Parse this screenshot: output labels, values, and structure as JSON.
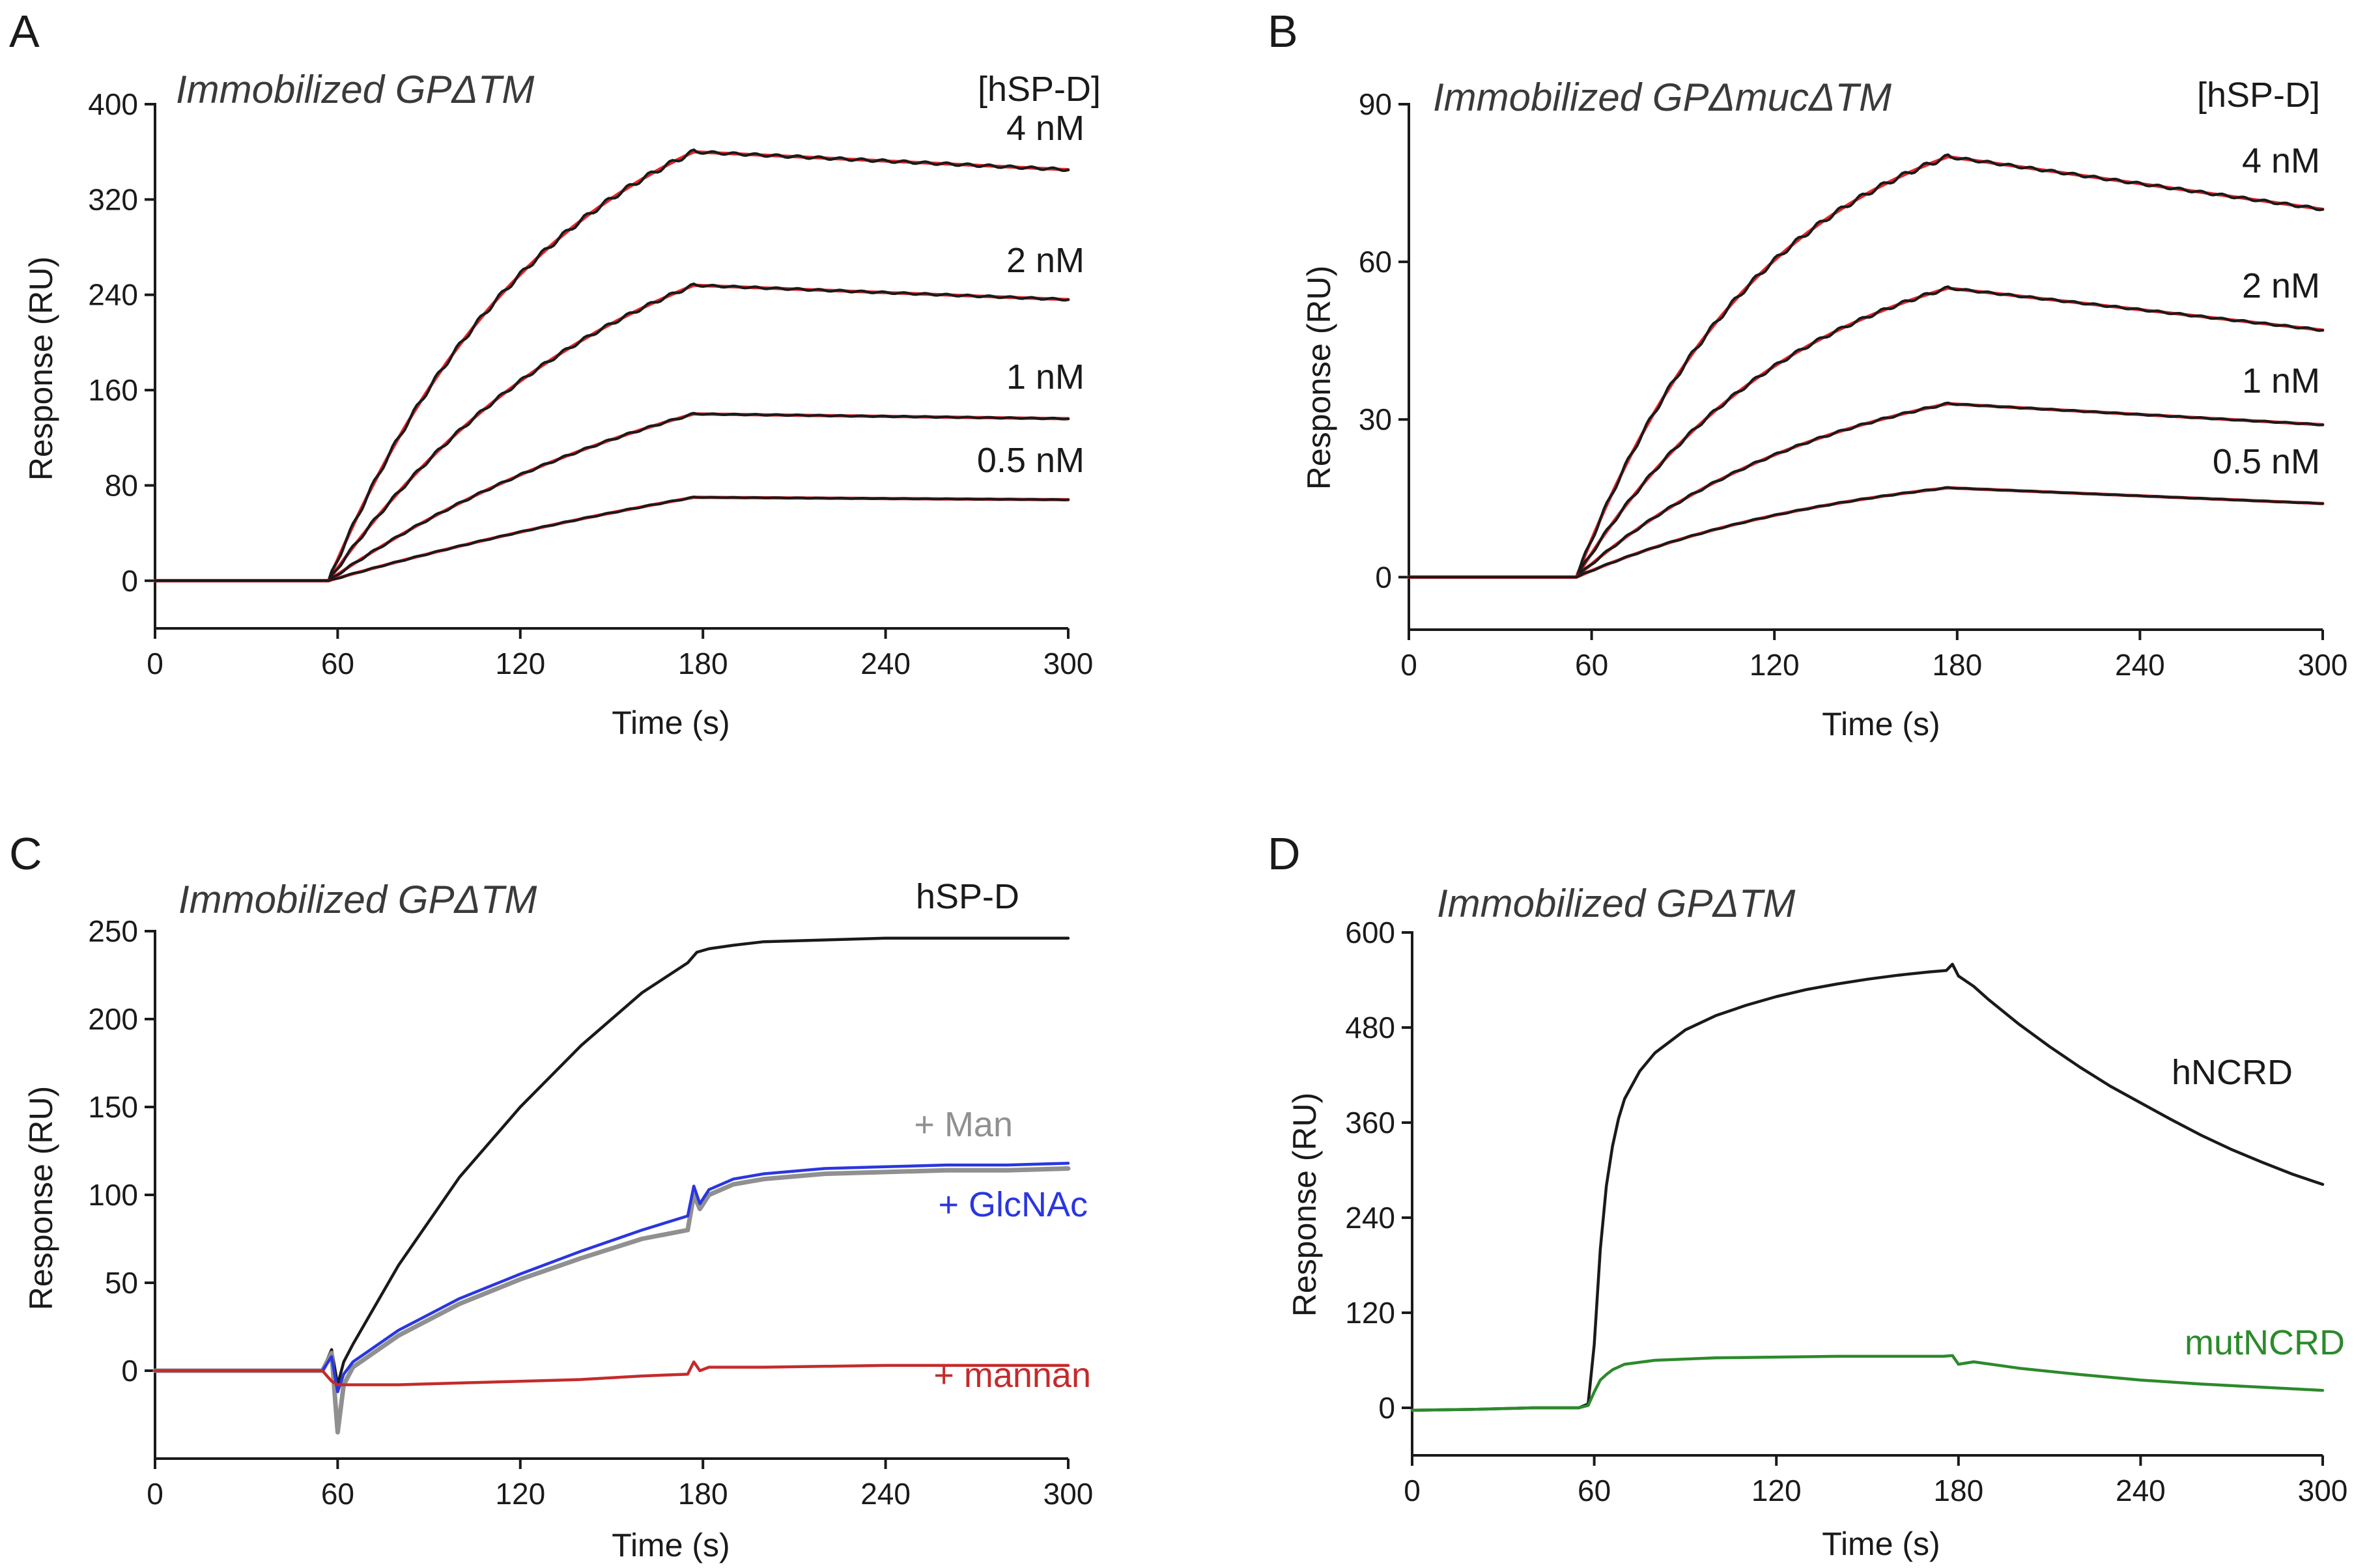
{
  "chart_data": [
    {
      "panel": "A",
      "type": "line",
      "title": "Immobilized GPΔTM",
      "legend_header": "[hSP-D]",
      "xlabel": "Time (s)",
      "ylabel": "Response (RU)",
      "xlim": [
        0,
        300
      ],
      "ylim": [
        -40,
        400
      ],
      "xticks": [
        0,
        60,
        120,
        180,
        240,
        300
      ],
      "yticks": [
        0,
        80,
        160,
        240,
        320,
        400
      ],
      "series": [
        {
          "name": "4 nM",
          "kind": "sensorgram",
          "Rmax": 360,
          "Rend": 345,
          "k": 0.0135,
          "start": 57,
          "end": 177,
          "color": "#1a1a1a",
          "fit_color": "#e8262b",
          "label_color": "#1a1a1a"
        },
        {
          "name": "2 nM",
          "kind": "sensorgram",
          "Rmax": 248,
          "Rend": 236,
          "k": 0.0105,
          "start": 57,
          "end": 177,
          "color": "#1a1a1a",
          "fit_color": "#e8262b",
          "label_color": "#1a1a1a"
        },
        {
          "name": "1 nM",
          "kind": "sensorgram",
          "Rmax": 140,
          "Rend": 136,
          "k": 0.0075,
          "start": 57,
          "end": 177,
          "color": "#1a1a1a",
          "fit_color": "#e8262b",
          "label_color": "#1a1a1a"
        },
        {
          "name": "0.5 nM",
          "kind": "sensorgram",
          "Rmax": 70,
          "Rend": 68,
          "k": 0.004,
          "start": 57,
          "end": 177,
          "color": "#1a1a1a",
          "fit_color": "#e8262b",
          "label_color": "#1a1a1a"
        }
      ]
    },
    {
      "panel": "B",
      "type": "line",
      "title": "Immobilized GPΔmucΔTM",
      "legend_header": "[hSP-D]",
      "xlabel": "Time (s)",
      "ylabel": "Response (RU)",
      "xlim": [
        0,
        300
      ],
      "ylim": [
        -10,
        90
      ],
      "xticks": [
        0,
        60,
        120,
        180,
        240,
        300
      ],
      "yticks": [
        0,
        30,
        60,
        90
      ],
      "series": [
        {
          "name": "4 nM",
          "kind": "sensorgram",
          "Rmax": 80,
          "Rend": 70,
          "k": 0.016,
          "start": 55,
          "end": 177,
          "color": "#1a1a1a",
          "fit_color": "#e8262b",
          "label_color": "#1a1a1a"
        },
        {
          "name": "2 nM",
          "kind": "sensorgram",
          "Rmax": 55,
          "Rend": 47,
          "k": 0.014,
          "start": 55,
          "end": 177,
          "color": "#1a1a1a",
          "fit_color": "#e8262b",
          "label_color": "#1a1a1a"
        },
        {
          "name": "1 nM",
          "kind": "sensorgram",
          "Rmax": 33,
          "Rend": 29,
          "k": 0.012,
          "start": 55,
          "end": 177,
          "color": "#1a1a1a",
          "fit_color": "#e8262b",
          "label_color": "#1a1a1a"
        },
        {
          "name": "0.5 nM",
          "kind": "sensorgram",
          "Rmax": 17,
          "Rend": 14,
          "k": 0.011,
          "start": 55,
          "end": 177,
          "color": "#1a1a1a",
          "fit_color": "#e8262b",
          "label_color": "#1a1a1a"
        }
      ]
    },
    {
      "panel": "C",
      "type": "line",
      "title": "Immobilized GPΔTM",
      "xlabel": "Time (s)",
      "ylabel": "Response (RU)",
      "xlim": [
        0,
        300
      ],
      "ylim": [
        -50,
        250
      ],
      "xticks": [
        0,
        60,
        120,
        180,
        240,
        300
      ],
      "yticks": [
        0,
        50,
        100,
        150,
        200,
        250
      ],
      "series": [
        {
          "name": "hSP-D",
          "color": "#1a1a1a",
          "label_color": "#1a1a1a",
          "x": [
            0,
            55,
            58,
            60,
            62,
            65,
            80,
            100,
            120,
            140,
            160,
            175,
            178,
            182,
            190,
            200,
            220,
            240,
            260,
            280,
            300
          ],
          "y": [
            0,
            0,
            12,
            -8,
            5,
            15,
            60,
            110,
            150,
            185,
            215,
            232,
            238,
            240,
            242,
            244,
            245,
            246,
            246,
            246,
            246
          ]
        },
        {
          "name": "+ Man",
          "color": "#909090",
          "label_color": "#909090",
          "x": [
            0,
            55,
            58,
            60,
            62,
            65,
            80,
            100,
            120,
            140,
            160,
            175,
            177,
            179,
            182,
            190,
            200,
            220,
            240,
            260,
            280,
            300
          ],
          "y": [
            0,
            0,
            10,
            -35,
            -8,
            2,
            20,
            38,
            52,
            64,
            75,
            80,
            100,
            92,
            100,
            106,
            109,
            112,
            113,
            114,
            114,
            115
          ]
        },
        {
          "name": "+ GlcNAc",
          "color": "#2a36e0",
          "label_color": "#2a36e0",
          "x": [
            0,
            55,
            58,
            60,
            62,
            65,
            80,
            100,
            120,
            140,
            160,
            175,
            177,
            179,
            182,
            190,
            200,
            220,
            240,
            260,
            280,
            300
          ],
          "y": [
            0,
            0,
            8,
            -12,
            -2,
            5,
            23,
            41,
            55,
            68,
            80,
            88,
            105,
            95,
            103,
            109,
            112,
            115,
            116,
            117,
            117,
            118
          ]
        },
        {
          "name": "+ mannan",
          "color": "#c42b2b",
          "label_color": "#c42b2b",
          "x": [
            0,
            55,
            58,
            60,
            63,
            80,
            100,
            120,
            140,
            160,
            175,
            177,
            179,
            182,
            200,
            240,
            280,
            300
          ],
          "y": [
            0,
            0,
            -6,
            -8,
            -8,
            -8,
            -7,
            -6,
            -5,
            -3,
            -2,
            5,
            0,
            2,
            2,
            3,
            3,
            3
          ]
        }
      ]
    },
    {
      "panel": "D",
      "type": "line",
      "title": "Immobilized GPΔTM",
      "xlabel": "Time (s)",
      "ylabel": "Response (RU)",
      "xlim": [
        0,
        300
      ],
      "ylim": [
        -60,
        600
      ],
      "xticks": [
        0,
        60,
        120,
        180,
        240,
        300
      ],
      "yticks": [
        0,
        120,
        240,
        360,
        480,
        600
      ],
      "series": [
        {
          "name": "hNCRD",
          "color": "#1a1a1a",
          "label_color": "#1a1a1a",
          "x": [
            0,
            20,
            40,
            55,
            58,
            60,
            62,
            64,
            66,
            68,
            70,
            75,
            80,
            90,
            100,
            110,
            120,
            130,
            140,
            150,
            160,
            170,
            176,
            178,
            180,
            185,
            190,
            200,
            210,
            220,
            230,
            240,
            250,
            260,
            270,
            280,
            290,
            300
          ],
          "y": [
            -3,
            -2,
            0,
            0,
            5,
            80,
            200,
            280,
            330,
            365,
            390,
            425,
            448,
            477,
            495,
            508,
            519,
            528,
            535,
            541,
            546,
            550,
            552,
            560,
            545,
            532,
            515,
            484,
            456,
            430,
            406,
            385,
            364,
            344,
            326,
            310,
            295,
            282
          ]
        },
        {
          "name": "mutNCRD",
          "color": "#2b8a2b",
          "label_color": "#2b8a2b",
          "x": [
            0,
            20,
            40,
            55,
            58,
            60,
            62,
            64,
            66,
            70,
            80,
            100,
            120,
            140,
            160,
            175,
            178,
            180,
            185,
            200,
            220,
            240,
            260,
            280,
            300
          ],
          "y": [
            -3,
            -2,
            0,
            0,
            3,
            20,
            35,
            42,
            48,
            55,
            60,
            63,
            64,
            65,
            65,
            65,
            66,
            55,
            58,
            50,
            42,
            35,
            30,
            26,
            22
          ]
        }
      ]
    }
  ]
}
